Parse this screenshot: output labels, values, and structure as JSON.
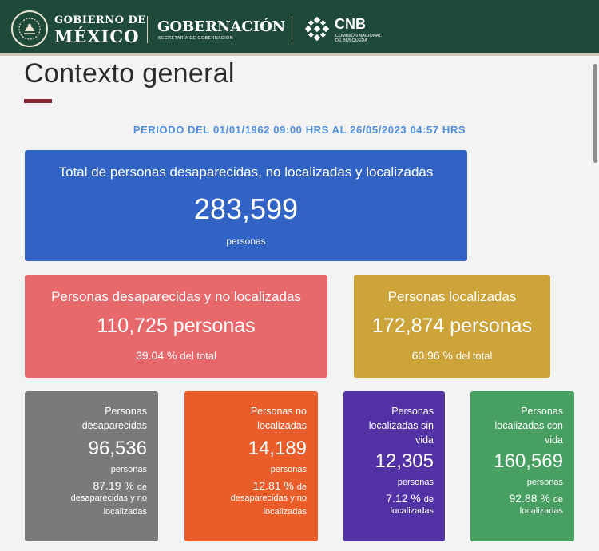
{
  "header": {
    "gobierno_line1": "GOBIERNO DE",
    "gobierno_line2": "MÉXICO",
    "gobernacion": "GOBERNACIÓN",
    "gobernacion_sub": "SECRETARÍA DE GOBERNACIÓN",
    "cnb": "CNB",
    "cnb_sub": "COMISIÓN NACIONAL DE BÚSQUEDA"
  },
  "page": {
    "title": "Contexto general",
    "period": "PERIODO DEL 01/01/1962 09:00 HRS AL 26/05/2023 04:57 HRS"
  },
  "total": {
    "label": "Total de personas desaparecidas, no localizadas y localizadas",
    "value": "283,599",
    "unit": "personas",
    "color": "#3163c4"
  },
  "desaparecidas_no_localizadas": {
    "label": "Personas desaparecidas y no localizadas",
    "value": "110,725 personas",
    "percent": "39.04 %",
    "percent_suffix": "del total",
    "color": "#e8696b"
  },
  "localizadas": {
    "label": "Personas localizadas",
    "value": "172,874 personas",
    "percent": "60.96 %",
    "percent_suffix": "del total",
    "color": "#cda43a"
  },
  "detail": [
    {
      "label_l1": "Personas",
      "label_l2": "desaparecidas",
      "value": "96,536",
      "unit": "personas",
      "percent": "87.19 %",
      "ref_l1": "de",
      "ref_l2": "desaparecidas y no",
      "ref_l3": "localizadas",
      "color": "#7a7a7a"
    },
    {
      "label_l1": "Personas no",
      "label_l2": "localizadas",
      "value": "14,189",
      "unit": "personas",
      "percent": "12.81 %",
      "ref_l1": "de",
      "ref_l2": "desaparecidas y no",
      "ref_l3": "localizadas",
      "color": "#e85d2a"
    },
    {
      "label_l1": "Personas",
      "label_l2": "localizadas sin",
      "label_l3": "vida",
      "value": "12,305",
      "unit": "personas",
      "percent": "7.12 %",
      "ref_l1": "de",
      "ref_l2": "localizadas",
      "color": "#5232a5"
    },
    {
      "label_l1": "Personas",
      "label_l2": "localizadas con",
      "label_l3": "vida",
      "value": "160,569",
      "unit": "personas",
      "percent": "92.88 %",
      "ref_l1": "de",
      "ref_l2": "localizadas",
      "color": "#47a061"
    }
  ]
}
